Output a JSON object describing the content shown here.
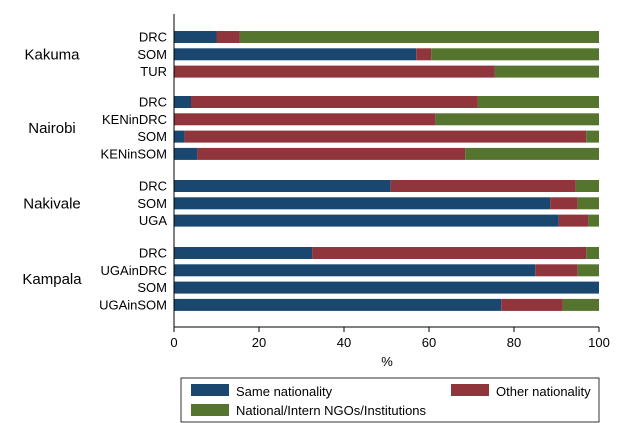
{
  "chart_data": {
    "type": "bar",
    "orientation": "horizontal",
    "stacked": true,
    "xlabel": "%",
    "xlim": [
      0,
      100
    ],
    "xticks": [
      "0",
      "20",
      "40",
      "60",
      "80",
      "100"
    ],
    "grid": false,
    "legend_position": "bottom",
    "groups": [
      {
        "name": "Kakuma",
        "rows": [
          {
            "label": "DRC",
            "values": [
              10,
              5.5,
              84.5
            ]
          },
          {
            "label": "SOM",
            "values": [
              57,
              3.5,
              39.5
            ]
          },
          {
            "label": "TUR",
            "values": [
              0,
              75.5,
              24.5
            ]
          }
        ]
      },
      {
        "name": "Nairobi",
        "rows": [
          {
            "label": "DRC",
            "values": [
              4,
              67.5,
              28.5
            ]
          },
          {
            "label": "KENinDRC",
            "values": [
              0,
              61.5,
              38.5
            ]
          },
          {
            "label": "SOM",
            "values": [
              2.5,
              94.5,
              3
            ]
          },
          {
            "label": "KENinSOM",
            "values": [
              5.5,
              63,
              31.5
            ]
          }
        ]
      },
      {
        "name": "Nakivale",
        "rows": [
          {
            "label": "DRC",
            "values": [
              51,
              43.5,
              5.5
            ]
          },
          {
            "label": "SOM",
            "values": [
              88.5,
              6.5,
              5
            ]
          },
          {
            "label": "UGA",
            "values": [
              90.5,
              7,
              2.5
            ]
          }
        ]
      },
      {
        "name": "Kampala",
        "rows": [
          {
            "label": "DRC",
            "values": [
              32.5,
              64.5,
              3
            ]
          },
          {
            "label": "UGAinDRC",
            "values": [
              85,
              10,
              5
            ]
          },
          {
            "label": "SOM",
            "values": [
              100,
              0,
              0
            ]
          },
          {
            "label": "UGAinSOM",
            "values": [
              77,
              14.5,
              8.5
            ]
          }
        ]
      }
    ],
    "series": [
      {
        "name": "Same nationality",
        "color": "#1a476f"
      },
      {
        "name": "Other nationality",
        "color": "#90353b"
      },
      {
        "name": "National/Intern NGOs/Institutions",
        "color": "#55752f"
      }
    ]
  }
}
